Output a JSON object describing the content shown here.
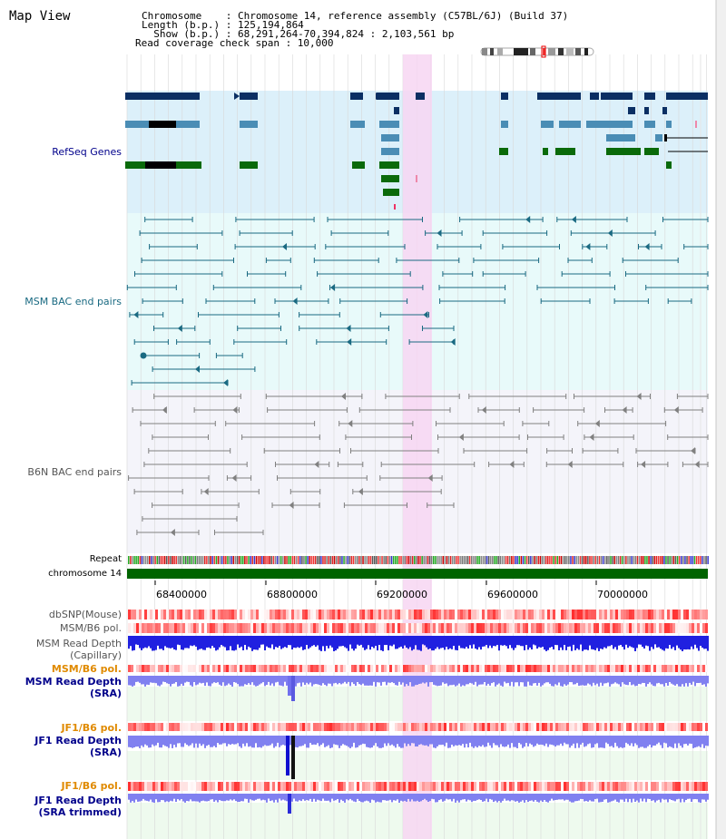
{
  "page_title": "Map View",
  "header": {
    "chromosome_line": "Chromosome    : Chromosome 14, reference assembly (C57BL/6J) (Build 37)",
    "length_line": "Length (b.p.) : 125,194,864",
    "show_line": "  Show (b.p.) : 68,291,264-70,394,824 : 2,103,561 bp",
    "coverage_line": "Read coverage check span : 10,000"
  },
  "tracks": {
    "refseq_label": "RefSeq Genes",
    "msm_bac_label": "MSM BAC end pairs",
    "b6n_bac_label": "B6N BAC end pairs",
    "repeat_label": "Repeat",
    "chrom_label": "chromosome 14",
    "dbsnp_label": "dbSNP(Mouse)",
    "msm_b6_pol_label": "MSM/B6 pol.",
    "msm_depth_cap_label_1": "MSM Read Depth",
    "msm_depth_cap_label_2": "(Capillary)",
    "msm_b6_pol2_label": "MSM/B6 pol.",
    "msm_depth_sra_label_1": "MSM Read Depth",
    "msm_depth_sra_label_2": "(SRA)",
    "jf1_b6_pol_label": "JF1/B6 pol.",
    "jf1_depth_sra_label_1": "JF1 Read Depth",
    "jf1_depth_sra_label_2": "(SRA)",
    "jf1_b6_pol2_label": "JF1/B6 pol.",
    "jf1_depth_trim_label_1": "JF1 Read Depth",
    "jf1_depth_trim_label_2": "(SRA trimmed)"
  },
  "ruler": {
    "ticks": [
      "68400000",
      "68800000",
      "69200000",
      "69600000",
      "70000000"
    ]
  },
  "colors": {
    "refseq_dark": "#0b2f63",
    "refseq_mid": "#4a8db5",
    "refseq_green": "#0a6a0a",
    "msm_teal": "#1a6a82",
    "b6n_gray": "#808080",
    "chromosome_green": "#006400",
    "highlight_pink": "#f7d6f2",
    "depth_blue": "#2020e0",
    "depth_light_blue": "#8080f0",
    "pol_red": "#ff3030",
    "orange_label": "#e08a00",
    "navy_label": "#00008b"
  },
  "icons": {
    "chromosome_ideogram": "chromosome-ideogram-icon"
  }
}
